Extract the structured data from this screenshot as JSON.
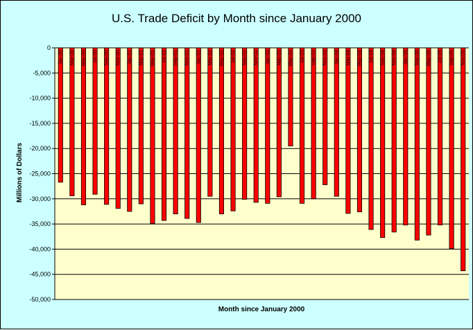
{
  "chart_data": {
    "type": "bar",
    "title": "U.S. Trade Deficit by Month since January 2000",
    "xlabel": "Month since January 2000",
    "ylabel": "Millions of Dollars",
    "ylim": [
      -50000,
      0
    ],
    "yticks": [
      0,
      -5000,
      -10000,
      -15000,
      -20000,
      -25000,
      -30000,
      -35000,
      -40000,
      -45000,
      -50000
    ],
    "ytick_labels": [
      "0",
      "-5,000",
      "-10,000",
      "-15,000",
      "-20,000",
      "-25,000",
      "-30,000",
      "-35,000",
      "-40,000",
      "-45,000",
      "-50,000"
    ],
    "categories": [
      "Jan-00",
      "Mar-00",
      "May-00",
      "Jul-00",
      "Sep-00",
      "Nov-00",
      "Jan-01",
      "Mar-01",
      "May-01",
      "Jul-01",
      "Sep-01",
      "Nov-01",
      "Jan-02",
      "Mar-02",
      "May-02",
      "Jul-02",
      "Sep-02",
      "Nov-02",
      "Jan-03",
      "Mar-03",
      "May-03",
      "Jul-03",
      "Sep-03",
      "Nov-03",
      "Jan-04",
      "Mar-04",
      "May-04",
      "Jul-04",
      "Sep-04",
      "Nov-04",
      "Jan-05",
      "Mar-05",
      "May-05",
      "Jul-05",
      "Sep-05",
      "Nov-05"
    ],
    "values": [
      -26700,
      -29400,
      -31200,
      -29100,
      -31100,
      -31900,
      -32500,
      -31000,
      -34900,
      -34300,
      -33000,
      -33900,
      -34700,
      -29500,
      -33000,
      -32400,
      -30100,
      -30700,
      -30900,
      -29600,
      -19500,
      -30900,
      -30000,
      -27200,
      -29500,
      -32900,
      -32600,
      -36100,
      -37700,
      -36600,
      -35200,
      -38200,
      -37200,
      -35200,
      -39900,
      -44300
    ],
    "grid": true,
    "legend": "none",
    "colors": {
      "background": "#ccffff",
      "plot_area": "#ffffcc",
      "bar": "#ff0000",
      "bar_edge": "#000000",
      "grid": "#000000"
    }
  }
}
